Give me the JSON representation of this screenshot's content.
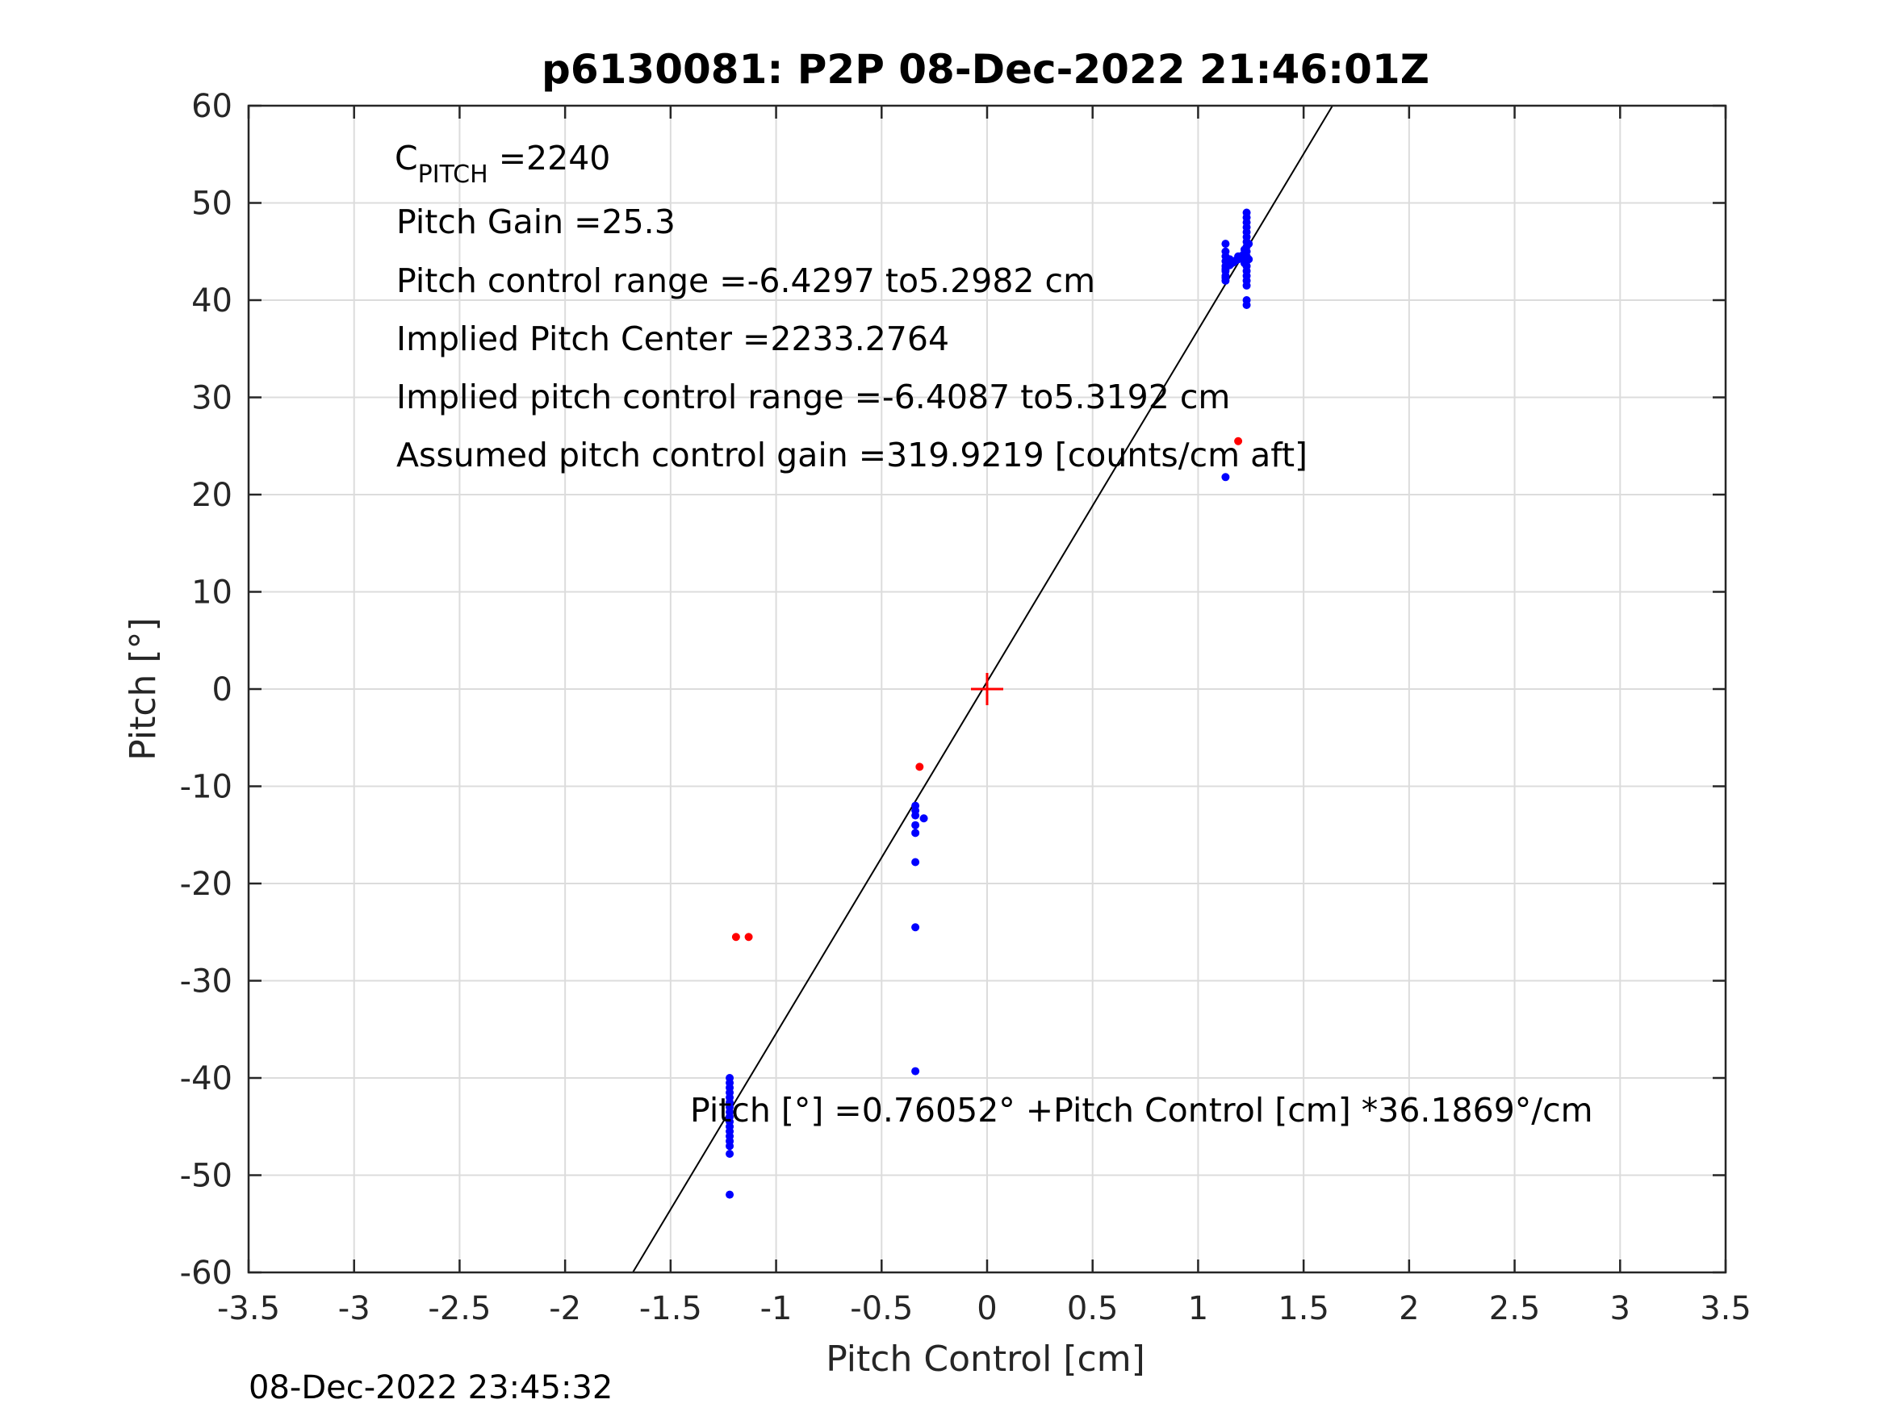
{
  "chart_data": {
    "type": "scatter",
    "title": "p6130081: P2P 08-Dec-2022 21:46:01Z",
    "xlabel": "Pitch Control [cm]",
    "ylabel": "Pitch [°]",
    "xlim": [
      -3.5,
      3.5
    ],
    "ylim": [
      -60,
      60
    ],
    "x_ticks": [
      -3.5,
      -3,
      -2.5,
      -2,
      -1.5,
      -1,
      -0.5,
      0,
      0.5,
      1,
      1.5,
      2,
      2.5,
      3,
      3.5
    ],
    "x_tick_labels": [
      "-3.5",
      "-3",
      "-2.5",
      "-2",
      "-1.5",
      "-1",
      "-0.5",
      "0",
      "0.5",
      "1",
      "1.5",
      "2",
      "2.5",
      "3",
      "3.5"
    ],
    "y_ticks": [
      -60,
      -50,
      -40,
      -30,
      -20,
      -10,
      0,
      10,
      20,
      30,
      40,
      50,
      60
    ],
    "y_tick_labels": [
      "-60",
      "-50",
      "-40",
      "-30",
      "-20",
      "-10",
      "0",
      "10",
      "20",
      "30",
      "40",
      "50",
      "60"
    ],
    "grid": true,
    "series": [
      {
        "color": "#0000ff",
        "marker": "dot",
        "points": [
          [
            1.13,
            42.0
          ],
          [
            1.13,
            42.5
          ],
          [
            1.13,
            43.0
          ],
          [
            1.13,
            43.5
          ],
          [
            1.13,
            44.0
          ],
          [
            1.13,
            44.5
          ],
          [
            1.13,
            45.0
          ],
          [
            1.13,
            45.8
          ],
          [
            1.13,
            42.3
          ],
          [
            1.13,
            43.2
          ],
          [
            1.15,
            43.6
          ],
          [
            1.16,
            43.8
          ],
          [
            1.17,
            44.0
          ],
          [
            1.18,
            44.1
          ],
          [
            1.19,
            44.2
          ],
          [
            1.2,
            44.4
          ],
          [
            1.21,
            44.6
          ],
          [
            1.15,
            44.2
          ],
          [
            1.17,
            43.9
          ],
          [
            1.19,
            44.5
          ],
          [
            1.23,
            39.5
          ],
          [
            1.23,
            40.0
          ],
          [
            1.23,
            41.5
          ],
          [
            1.23,
            42.0
          ],
          [
            1.23,
            42.5
          ],
          [
            1.23,
            43.0
          ],
          [
            1.23,
            43.5
          ],
          [
            1.23,
            44.0
          ],
          [
            1.23,
            44.5
          ],
          [
            1.23,
            45.0
          ],
          [
            1.23,
            45.5
          ],
          [
            1.23,
            46.0
          ],
          [
            1.23,
            46.5
          ],
          [
            1.23,
            47.0
          ],
          [
            1.23,
            47.5
          ],
          [
            1.23,
            48.0
          ],
          [
            1.23,
            48.5
          ],
          [
            1.23,
            49.0
          ],
          [
            1.22,
            43.8
          ],
          [
            1.24,
            44.2
          ],
          [
            1.22,
            45.2
          ],
          [
            1.24,
            45.8
          ],
          [
            1.13,
            21.8
          ],
          [
            -0.34,
            -12.0
          ],
          [
            -0.34,
            -12.5
          ],
          [
            -0.34,
            -13.0
          ],
          [
            -0.34,
            -14.0
          ],
          [
            -0.34,
            -14.8
          ],
          [
            -0.3,
            -13.3
          ],
          [
            -0.34,
            -17.8
          ],
          [
            -0.34,
            -24.5
          ],
          [
            -0.34,
            -39.3
          ],
          [
            -1.22,
            -40.0
          ],
          [
            -1.22,
            -40.5
          ],
          [
            -1.22,
            -41.0
          ],
          [
            -1.22,
            -41.5
          ],
          [
            -1.22,
            -42.0
          ],
          [
            -1.22,
            -42.5
          ],
          [
            -1.22,
            -43.0
          ],
          [
            -1.22,
            -43.5
          ],
          [
            -1.22,
            -44.0
          ],
          [
            -1.22,
            -44.5
          ],
          [
            -1.22,
            -45.0
          ],
          [
            -1.22,
            -45.5
          ],
          [
            -1.22,
            -46.0
          ],
          [
            -1.22,
            -46.5
          ],
          [
            -1.22,
            -47.0
          ],
          [
            -1.22,
            -47.8
          ],
          [
            -1.22,
            -52.0
          ]
        ]
      },
      {
        "color": "#ff0000",
        "marker": "dot",
        "points": [
          [
            1.19,
            25.5
          ],
          [
            -0.32,
            -8.0
          ],
          [
            -1.19,
            -25.5
          ],
          [
            -1.13,
            -25.5
          ]
        ]
      }
    ],
    "fit_line": {
      "intercept": 0.76052,
      "slope": 36.1869,
      "color": "#000000"
    },
    "center_marker": {
      "x": 0,
      "y": 0,
      "color": "#ff0000",
      "marker": "plus"
    }
  },
  "annotations": {
    "c_pitch_main": "C",
    "c_pitch_sub": "PITCH",
    "c_pitch_value": " =2240",
    "pitch_gain": "Pitch Gain =25.3",
    "pitch_control_range": "Pitch control range =-6.4297 to5.2982 cm",
    "implied_pitch_center": "Implied Pitch Center =2233.2764",
    "implied_pitch_control_range": "Implied pitch control range =-6.4087 to5.3192 cm",
    "assumed_gain": "Assumed pitch control gain =319.9219 [counts/cm aft]",
    "fit_equation": "Pitch [°] =0.76052° +Pitch Control [cm] *36.1869°/cm"
  },
  "timestamp": "08-Dec-2022 23:45:32"
}
